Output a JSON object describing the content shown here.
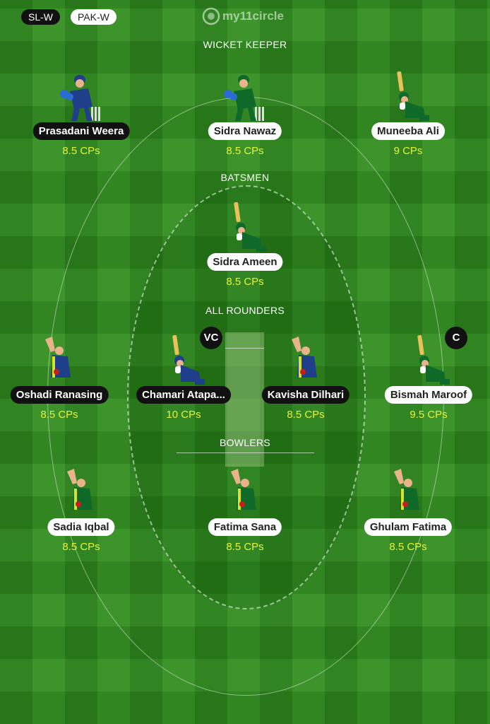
{
  "teams": [
    "SL-W",
    "PAK-W"
  ],
  "logo_text": "my11circle",
  "sections": {
    "wicket_keeper": "WICKET KEEPER",
    "batsmen": "BATSMEN",
    "all_rounders": "ALL ROUNDERS",
    "bowlers": "BOWLERS"
  },
  "players": [
    {
      "name": "Prasadani Weera",
      "cp": "8.5 CPs",
      "team": "SL-W",
      "pose": "keeper"
    },
    {
      "name": "Sidra Nawaz",
      "cp": "8.5 CPs",
      "team": "PAK-W",
      "pose": "keeper"
    },
    {
      "name": "Muneeba Ali",
      "cp": "9 CPs",
      "team": "PAK-W",
      "pose": "batter"
    },
    {
      "name": "Sidra Ameen",
      "cp": "8.5 CPs",
      "team": "PAK-W",
      "pose": "batter"
    },
    {
      "name": "Oshadi Ranasing",
      "cp": "8.5 CPs",
      "team": "SL-W",
      "pose": "bowler"
    },
    {
      "name": "Chamari Atapa...",
      "cp": "10 CPs",
      "team": "SL-W",
      "pose": "batter",
      "badge": "VC"
    },
    {
      "name": "Kavisha Dilhari",
      "cp": "8.5 CPs",
      "team": "SL-W",
      "pose": "bowler"
    },
    {
      "name": "Bismah Maroof",
      "cp": "9.5 CPs",
      "team": "PAK-W",
      "pose": "batter",
      "badge": "C"
    },
    {
      "name": "Sadia Iqbal",
      "cp": "8.5 CPs",
      "team": "PAK-W",
      "pose": "bowler"
    },
    {
      "name": "Fatima Sana",
      "cp": "8.5 CPs",
      "team": "PAK-W",
      "pose": "bowler"
    },
    {
      "name": "Ghulam Fatima",
      "cp": "8.5 CPs",
      "team": "PAK-W",
      "pose": "bowler"
    }
  ],
  "colors": {
    "sl_jersey": "#1f3f8a",
    "pak_jersey": "#0f6a2a",
    "cp_text": "#e6f23a",
    "field": "#2f8d1d"
  }
}
